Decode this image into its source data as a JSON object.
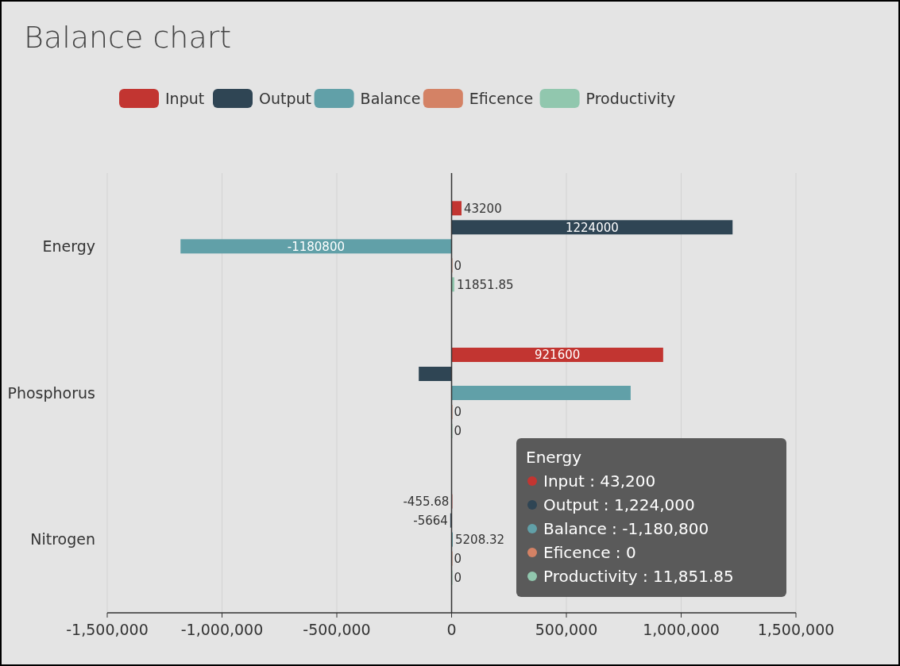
{
  "chart_data": {
    "type": "bar",
    "title": "Balance chart",
    "orientation": "horizontal",
    "categories": [
      "Energy",
      "Phosphorus",
      "Nitrogen"
    ],
    "series": [
      {
        "name": "Input",
        "color": "#c23531",
        "values": [
          43200,
          921600,
          -455.68
        ],
        "value_labels": [
          "43200",
          "921600",
          "-455.68"
        ]
      },
      {
        "name": "Output",
        "color": "#2f4554",
        "values": [
          1224000,
          -143000,
          -5664
        ],
        "value_labels": [
          "1224000",
          null,
          "-5664"
        ]
      },
      {
        "name": "Balance",
        "color": "#61a0a8",
        "values": [
          -1180800,
          780000,
          5208.32
        ],
        "value_labels": [
          "-1180800",
          null,
          "5208.32"
        ]
      },
      {
        "name": "Eficence",
        "color": "#d48265",
        "values": [
          0,
          0,
          0
        ],
        "value_labels": [
          "0",
          "0",
          "0"
        ]
      },
      {
        "name": "Productivity",
        "color": "#91c7ae",
        "values": [
          11851.85,
          0,
          0
        ],
        "value_labels": [
          "11851.85",
          "0",
          "0"
        ]
      }
    ],
    "xlim": [
      -1500000,
      1500000
    ],
    "xticks": [
      {
        "value": -1500000,
        "label": "-1,500,000"
      },
      {
        "value": -1000000,
        "label": "-1,000,000"
      },
      {
        "value": -500000,
        "label": "-500,000"
      },
      {
        "value": 0,
        "label": "0"
      },
      {
        "value": 500000,
        "label": "500,000"
      },
      {
        "value": 1000000,
        "label": "1,000,000"
      },
      {
        "value": 1500000,
        "label": "1,500,000"
      }
    ],
    "grid": "x",
    "legend": "top",
    "annotations": [
      "Energy",
      "Input : 43,200",
      "Output : 1,224,000",
      "Balance : -1,180,800",
      "Eficence : 0",
      "Productivity : 11,851.85"
    ]
  }
}
